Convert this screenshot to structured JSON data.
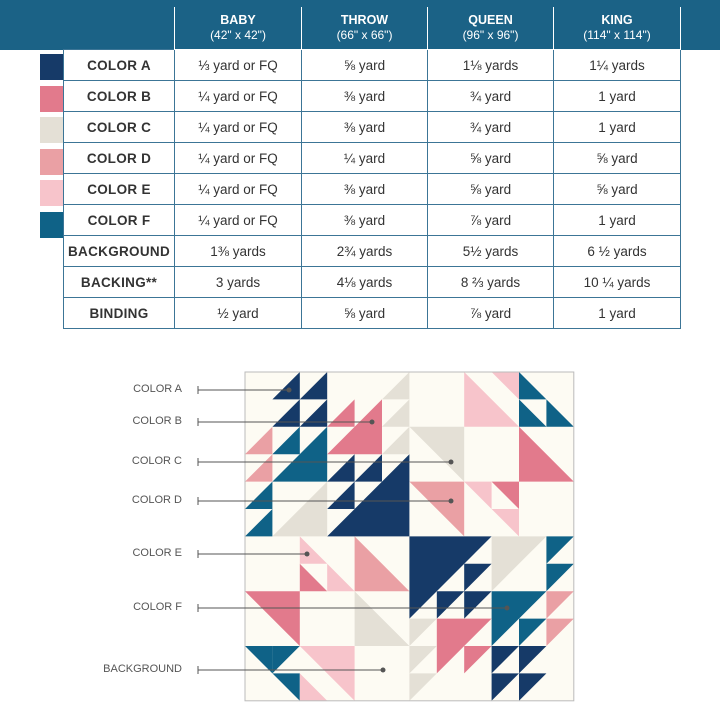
{
  "colors": {
    "A": "#163a68",
    "B": "#e27a8c",
    "C": "#e4e0d6",
    "D": "#eaa0a4",
    "E": "#f7c4cb",
    "F": "#0f6287",
    "BG": "#fdfbf3",
    "header": "#1b6286"
  },
  "table": {
    "columns": [
      {
        "name": "BABY",
        "size": "(42\" x 42\")"
      },
      {
        "name": "THROW",
        "size": "(66\" x 66\")"
      },
      {
        "name": "QUEEN",
        "size": "(96\" x 96\")"
      },
      {
        "name": "KING",
        "size": "(114\" x 114\")"
      }
    ],
    "rows": [
      {
        "label": "COLOR A",
        "swatch": "#163a68",
        "values": [
          "⅓ yard or FQ",
          "⅝ yard",
          "1⅛ yards",
          "1¼ yards"
        ]
      },
      {
        "label": "COLOR B",
        "swatch": "#e27a8c",
        "values": [
          "¼ yard or FQ",
          "⅜ yard",
          "¾ yard",
          "1 yard"
        ]
      },
      {
        "label": "COLOR C",
        "swatch": "#e4e0d6",
        "values": [
          "¼ yard or FQ",
          "⅜ yard",
          "¾ yard",
          "1 yard"
        ]
      },
      {
        "label": "COLOR D",
        "swatch": "#eaa0a4",
        "values": [
          "¼ yard or FQ",
          "¼ yard",
          "⅝ yard",
          "⅝ yard"
        ]
      },
      {
        "label": "COLOR E",
        "swatch": "#f7c4cb",
        "values": [
          "¼ yard or FQ",
          "⅜ yard",
          "⅝ yard",
          "⅝ yard"
        ]
      },
      {
        "label": "COLOR F",
        "swatch": "#0f6287",
        "values": [
          "¼ yard or FQ",
          "⅜ yard",
          "⅞ yard",
          "1 yard"
        ]
      },
      {
        "label": "BACKGROUND",
        "values": [
          "1⅜ yards",
          "2¾ yards",
          "5½ yards",
          "6 ½ yards"
        ]
      },
      {
        "label": "BACKING**",
        "values": [
          "3 yards",
          "4⅛ yards",
          "8 ⅔ yards",
          "10 ¼ yards"
        ]
      },
      {
        "label": "BINDING",
        "values": [
          "½ yard",
          "⅝ yard",
          "⅞ yard",
          "1 yard"
        ]
      }
    ]
  },
  "diagram": {
    "labels": [
      "COLOR A",
      "COLOR B",
      "COLOR C",
      "COLOR D",
      "COLOR E",
      "COLOR F",
      "BACKGROUND"
    ]
  }
}
